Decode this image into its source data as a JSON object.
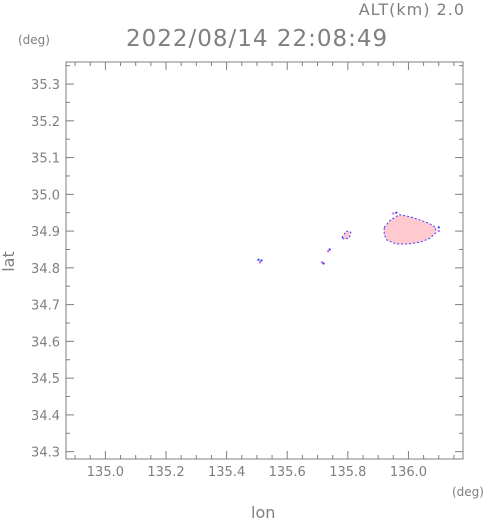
{
  "header": {
    "altitude_label": "ALT(km) 2.0",
    "timestamp": "2022/08/14 22:08:49"
  },
  "axes": {
    "y_unit": "(deg)",
    "x_unit": "(deg)",
    "x_label": "lon",
    "y_label": "lat"
  },
  "colors": {
    "axis": "#7f7f7f",
    "echo_fill": "#ffc9d0",
    "echo_edge": "#3b3bff",
    "echo_edge_alt": "#d060d0"
  },
  "chart_data": {
    "type": "scatter",
    "title": "2022/08/14 22:08:49",
    "subtitle": "ALT(km) 2.0",
    "xlabel": "lon",
    "ylabel": "lat",
    "x_unit": "(deg)",
    "y_unit": "(deg)",
    "xlim": [
      134.87,
      136.18
    ],
    "ylim": [
      34.28,
      35.36
    ],
    "xticks": [
      "135.0",
      "135.2",
      "135.4",
      "135.6",
      "135.8",
      "136.0"
    ],
    "xtick_values": [
      135.0,
      135.2,
      135.4,
      135.6,
      135.8,
      136.0
    ],
    "yticks": [
      "34.3",
      "34.4",
      "34.5",
      "34.6",
      "34.7",
      "34.8",
      "34.9",
      "35.0",
      "35.1",
      "35.2",
      "35.3"
    ],
    "ytick_values": [
      34.3,
      34.4,
      34.5,
      34.6,
      34.7,
      34.8,
      34.9,
      35.0,
      35.1,
      35.2,
      35.3
    ],
    "grid": false,
    "echo_regions": [
      {
        "name": "main-echo",
        "polygon": [
          [
            135.92,
            34.91
          ],
          [
            135.94,
            34.93
          ],
          [
            135.97,
            34.945
          ],
          [
            136.0,
            34.94
          ],
          [
            136.04,
            34.93
          ],
          [
            136.07,
            34.92
          ],
          [
            136.09,
            34.91
          ],
          [
            136.09,
            34.895
          ],
          [
            136.07,
            34.88
          ],
          [
            136.04,
            34.87
          ],
          [
            136.0,
            34.865
          ],
          [
            135.96,
            34.865
          ],
          [
            135.93,
            34.875
          ],
          [
            135.92,
            34.89
          ]
        ]
      },
      {
        "name": "small-echo",
        "polygon": [
          [
            135.78,
            34.882
          ],
          [
            135.795,
            34.9
          ],
          [
            135.81,
            34.897
          ],
          [
            135.805,
            34.882
          ],
          [
            135.79,
            34.878
          ]
        ]
      }
    ],
    "echo_points": [
      [
        135.505,
        34.822
      ],
      [
        135.51,
        34.815
      ],
      [
        135.515,
        34.82
      ],
      [
        135.715,
        34.815
      ],
      [
        135.72,
        34.812
      ],
      [
        135.735,
        34.845
      ],
      [
        135.74,
        34.85
      ],
      [
        135.95,
        34.948
      ],
      [
        135.96,
        34.95
      ],
      [
        136.1,
        34.9
      ],
      [
        136.1,
        34.91
      ]
    ]
  }
}
